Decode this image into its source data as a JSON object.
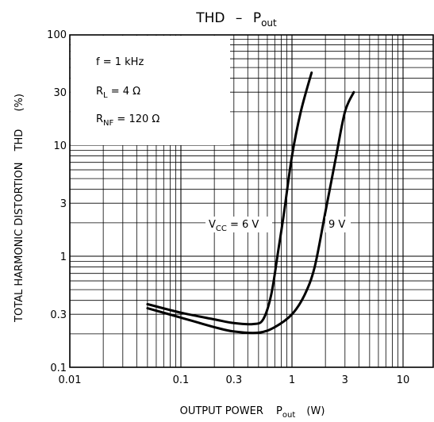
{
  "chart_data": {
    "type": "line",
    "title": {
      "main": "THD",
      "dash": "–",
      "p": "P",
      "sub": "out"
    },
    "xlabel": {
      "main": "OUTPUT POWER",
      "p": "P",
      "sub": "out",
      "unit": "(W)"
    },
    "ylabel": {
      "main": "TOTAL HARMONIC DISTORTION",
      "thd": "THD",
      "unit": "(%)"
    },
    "xscale": "log",
    "yscale": "log",
    "xlim": [
      0.01,
      20
    ],
    "ylim": [
      0.1,
      100
    ],
    "xticks": [
      {
        "value": 0.01,
        "label": "0.01"
      },
      {
        "value": 0.1,
        "label": "0.1"
      },
      {
        "value": 0.3,
        "label": "0.3"
      },
      {
        "value": 1,
        "label": "1"
      },
      {
        "value": 3,
        "label": "3"
      },
      {
        "value": 10,
        "label": "10"
      }
    ],
    "yticks": [
      {
        "value": 0.1,
        "label": "0.1"
      },
      {
        "value": 0.3,
        "label": "0.3"
      },
      {
        "value": 1,
        "label": "1"
      },
      {
        "value": 3,
        "label": "3"
      },
      {
        "value": 10,
        "label": "10"
      },
      {
        "value": 30,
        "label": "30"
      },
      {
        "value": 100,
        "label": "100"
      }
    ],
    "grid": true,
    "conditions": [
      {
        "main": "f = 1 kHz",
        "sub": "",
        "rest": ""
      },
      {
        "main": "R",
        "sub": "L",
        "rest": " = 4 Ω"
      },
      {
        "main": "R",
        "sub": "NF",
        "rest": " = 120 Ω"
      }
    ],
    "series": [
      {
        "label": {
          "main": "V",
          "sub": "CC",
          "rest": " = 6 V"
        },
        "points": [
          [
            0.05,
            0.37
          ],
          [
            0.1,
            0.31
          ],
          [
            0.2,
            0.27
          ],
          [
            0.3,
            0.25
          ],
          [
            0.45,
            0.245
          ],
          [
            0.55,
            0.27
          ],
          [
            0.65,
            0.45
          ],
          [
            0.75,
            1.1
          ],
          [
            0.85,
            2.5
          ],
          [
            1.0,
            8
          ],
          [
            1.2,
            20
          ],
          [
            1.5,
            45
          ]
        ]
      },
      {
        "label": {
          "main": "",
          "sub": "",
          "rest": "9 V"
        },
        "points": [
          [
            0.05,
            0.34
          ],
          [
            0.1,
            0.28
          ],
          [
            0.2,
            0.23
          ],
          [
            0.3,
            0.21
          ],
          [
            0.5,
            0.205
          ],
          [
            0.7,
            0.23
          ],
          [
            1.0,
            0.3
          ],
          [
            1.3,
            0.45
          ],
          [
            1.6,
            0.8
          ],
          [
            2.0,
            2.5
          ],
          [
            2.5,
            8
          ],
          [
            3.0,
            20
          ],
          [
            3.6,
            30
          ]
        ]
      }
    ]
  }
}
